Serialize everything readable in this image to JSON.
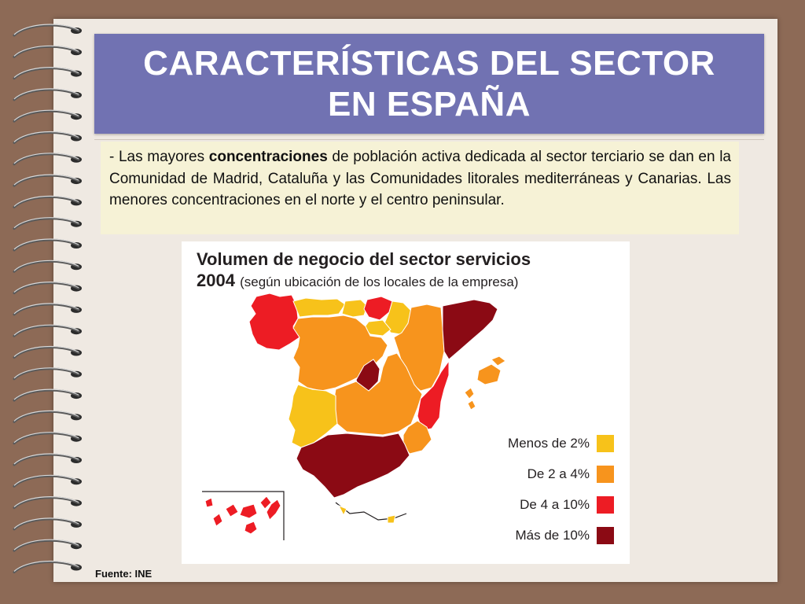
{
  "title": {
    "line1": "CARACTERÍSTICAS DEL SECTOR",
    "line2": "EN ESPAÑA"
  },
  "text": {
    "before_bold": "- Las mayores ",
    "bold": "concentraciones",
    "after_bold": " de población activa dedicada al sector terciario se dan en la Comunidad de Madrid, Cataluña y las Comunidades litorales mediterráneas y Canarias. Las menores concentraciones en el norte y el centro peninsular."
  },
  "map": {
    "title_line1": "Volumen de negocio del sector servicios",
    "title_year": "2004",
    "title_sub": "(según ubicación de los locales de la empresa)",
    "legend": [
      {
        "label": "Menos de 2%",
        "color": "#f7c21a"
      },
      {
        "label": "De 2 a 4%",
        "color": "#f7941d"
      },
      {
        "label": "De 4 a 10%",
        "color": "#ed1c24"
      },
      {
        "label": "Más de 10%",
        "color": "#8b0a14"
      }
    ],
    "regions": [
      {
        "name": "Galicia",
        "level": 2
      },
      {
        "name": "Asturias",
        "level": 0
      },
      {
        "name": "Cantabria",
        "level": 0
      },
      {
        "name": "País Vasco",
        "level": 2
      },
      {
        "name": "Navarra",
        "level": 0
      },
      {
        "name": "La Rioja",
        "level": 0
      },
      {
        "name": "Aragón",
        "level": 1
      },
      {
        "name": "Cataluña",
        "level": 3
      },
      {
        "name": "Castilla y León",
        "level": 1
      },
      {
        "name": "Madrid",
        "level": 3
      },
      {
        "name": "Castilla-La Mancha",
        "level": 1
      },
      {
        "name": "Comunidad Valenciana",
        "level": 2
      },
      {
        "name": "Islas Baleares",
        "level": 1
      },
      {
        "name": "Extremadura",
        "level": 0
      },
      {
        "name": "Murcia",
        "level": 1
      },
      {
        "name": "Andalucía",
        "level": 3
      },
      {
        "name": "Canarias",
        "level": 2
      },
      {
        "name": "Ceuta y Melilla",
        "level": 0
      }
    ]
  },
  "source": "Fuente: INE",
  "colors": {
    "frame": "#8d6a56",
    "page": "#efe9e2",
    "title_bg": "#7172b2",
    "text_bg": "#f6f2d6"
  }
}
